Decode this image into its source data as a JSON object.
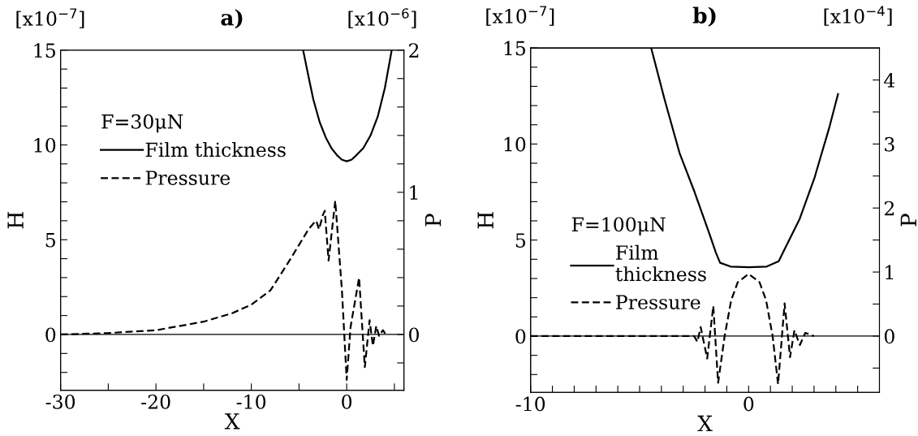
{
  "chart_data": [
    {
      "type": "line",
      "title": "a)",
      "xlabel": "X",
      "ylabel": "H",
      "y2label": "P",
      "legend_title": "F=30μN",
      "legend": "top left",
      "annotations": [
        "[x10$^{−7}$]",
        "[x10$^{−6}$]"
      ],
      "xlim": [
        -30,
        6
      ],
      "xticks": [
        -30,
        {
          "value": -25,
          "label": null
        },
        -20,
        {
          "value": -15,
          "label": null
        },
        -10,
        {
          "value": -5,
          "label": null
        },
        0,
        {
          "value": 5,
          "label": null
        }
      ],
      "ylim": [
        -2.94,
        15
      ],
      "yticks": [
        {
          "value": -2,
          "label": null
        },
        {
          "value": -1,
          "label": null
        },
        0,
        {
          "value": 1,
          "label": null
        },
        {
          "value": 2,
          "label": null
        },
        {
          "value": 3,
          "label": null
        },
        {
          "value": 4,
          "label": null
        },
        5,
        {
          "value": 6,
          "label": null
        },
        {
          "value": 7,
          "label": null
        },
        {
          "value": 8,
          "label": null
        },
        {
          "value": 9,
          "label": null
        },
        10,
        {
          "value": 11,
          "label": null
        },
        {
          "value": 12,
          "label": null
        },
        {
          "value": 13,
          "label": null
        },
        {
          "value": 14,
          "label": null
        },
        15
      ],
      "y2lim": [
        -0.392,
        2
      ],
      "y2ticks": [
        {
          "value": -0.2,
          "label": null
        },
        0,
        {
          "value": 0.2,
          "label": null
        },
        {
          "value": 0.4,
          "label": null
        },
        {
          "value": 0.6,
          "label": null
        },
        {
          "value": 0.8,
          "label": null
        },
        1,
        {
          "value": 1.2,
          "label": null
        },
        {
          "value": 1.4,
          "label": null
        },
        {
          "value": 1.6,
          "label": null
        },
        {
          "value": 1.8,
          "label": null
        },
        2
      ],
      "ref_lines": [
        {
          "axis": "y",
          "value": 0,
          "color": "#000000",
          "line_style": "solid"
        }
      ],
      "series": [
        {
          "name": "Film thickness",
          "color": "#000000",
          "line_style": "solid",
          "x": [
            -4.57,
            -4,
            -3.5,
            -2.83,
            -2.2,
            -1.6,
            -1,
            -0.5,
            0,
            0.5,
            1,
            1.74,
            2.5,
            3.26,
            4,
            4.72
          ],
          "values": [
            15,
            13.6,
            12.4,
            11.2,
            10.4,
            9.83,
            9.45,
            9.22,
            9.14,
            9.22,
            9.45,
            9.83,
            10.5,
            11.5,
            13.0,
            15
          ]
        },
        {
          "name": "Pressure",
          "color": "#000000",
          "line_style": "dashed",
          "axis": "y2",
          "x": [
            -30,
            -25,
            -20,
            -15,
            -12,
            -10,
            -8,
            -6,
            -4,
            -3.5,
            -3.2,
            -2.9,
            -2.5,
            -2.3,
            -1.9,
            -1.2,
            -0.5,
            0,
            0.4,
            1.3,
            1.9,
            2.4,
            2.75,
            3.1,
            3.4,
            3.8,
            4.1
          ],
          "values": [
            0,
            0.01,
            0.03,
            0.09,
            0.15,
            0.21,
            0.31,
            0.52,
            0.74,
            0.78,
            0.8,
            0.74,
            0.84,
            0.87,
            0.52,
            0.94,
            0.31,
            -0.32,
            0.05,
            0.4,
            -0.23,
            0.1,
            -0.08,
            0.06,
            -0.01,
            0.03,
            0
          ]
        }
      ]
    },
    {
      "type": "line",
      "title": "b)",
      "xlabel": "X",
      "ylabel": "H",
      "y2label": "P",
      "legend_title": "F=100μN",
      "legend": "left",
      "annotations": [
        "[x10$^{−7}$]",
        "[x10$^{−4}$]"
      ],
      "xlim": [
        -10,
        6
      ],
      "xticks": [
        -10,
        {
          "value": -9,
          "label": null
        },
        {
          "value": -8,
          "label": null
        },
        {
          "value": -7,
          "label": null
        },
        {
          "value": -6,
          "label": null
        },
        {
          "value": -5,
          "label": null
        },
        {
          "value": -4,
          "label": null
        },
        {
          "value": -3,
          "label": null
        },
        {
          "value": -2,
          "label": null
        },
        {
          "value": -1,
          "label": null
        },
        0,
        {
          "value": 1,
          "label": null
        },
        {
          "value": 2,
          "label": null
        },
        {
          "value": 3,
          "label": null
        },
        {
          "value": 4,
          "label": null
        },
        {
          "value": 5,
          "label": null
        }
      ],
      "ylim": [
        -2.93,
        15
      ],
      "yticks": [
        {
          "value": -2,
          "label": null
        },
        {
          "value": -1,
          "label": null
        },
        0,
        {
          "value": 1,
          "label": null
        },
        {
          "value": 2,
          "label": null
        },
        {
          "value": 3,
          "label": null
        },
        {
          "value": 4,
          "label": null
        },
        5,
        {
          "value": 6,
          "label": null
        },
        {
          "value": 7,
          "label": null
        },
        {
          "value": 8,
          "label": null
        },
        {
          "value": 9,
          "label": null
        },
        10,
        {
          "value": 11,
          "label": null
        },
        {
          "value": 12,
          "label": null
        },
        {
          "value": 13,
          "label": null
        },
        {
          "value": 14,
          "label": null
        },
        15
      ],
      "y2lim": [
        -0.88,
        4.5
      ],
      "y2ticks": [
        {
          "value": -0.5,
          "label": null
        },
        0,
        {
          "value": 0.5,
          "label": null
        },
        1,
        {
          "value": 1.5,
          "label": null
        },
        2,
        {
          "value": 2.5,
          "label": null
        },
        3,
        {
          "value": 3.5,
          "label": null
        },
        4
      ],
      "ref_lines": [
        {
          "axis": "y",
          "value": 0,
          "color": "#000000",
          "line_style": "solid"
        }
      ],
      "series": [
        {
          "name": "Film\nthickness",
          "color": "#000000",
          "line_style": "solid",
          "x": [
            -4.47,
            -3.85,
            -3.16,
            -2.48,
            -1.79,
            -1.51,
            -1.31,
            -0.83,
            0,
            0.83,
            1.38,
            1.65,
            2.34,
            3.03,
            3.71,
            4.1
          ],
          "values": [
            15,
            12.3,
            9.5,
            7.5,
            5.3,
            4.37,
            3.82,
            3.62,
            3.59,
            3.62,
            3.9,
            4.52,
            6.1,
            8.27,
            10.9,
            12.6
          ]
        },
        {
          "name": "Pressure",
          "color": "#000000",
          "line_style": "dashed",
          "axis": "y2",
          "x": [
            -10,
            -2.5,
            -2.35,
            -2.2,
            -1.9,
            -1.62,
            -1.4,
            -1.1,
            -0.8,
            -0.5,
            0,
            0.5,
            0.8,
            1.1,
            1.35,
            1.65,
            1.9,
            2.1,
            2.35,
            2.6,
            3.0
          ],
          "values": [
            0,
            0,
            -0.09,
            0.14,
            -0.35,
            0.47,
            -0.73,
            0,
            0.56,
            0.84,
            0.97,
            0.84,
            0.56,
            0,
            -0.75,
            0.51,
            -0.33,
            0.09,
            -0.14,
            0.05,
            0
          ]
        }
      ]
    }
  ]
}
